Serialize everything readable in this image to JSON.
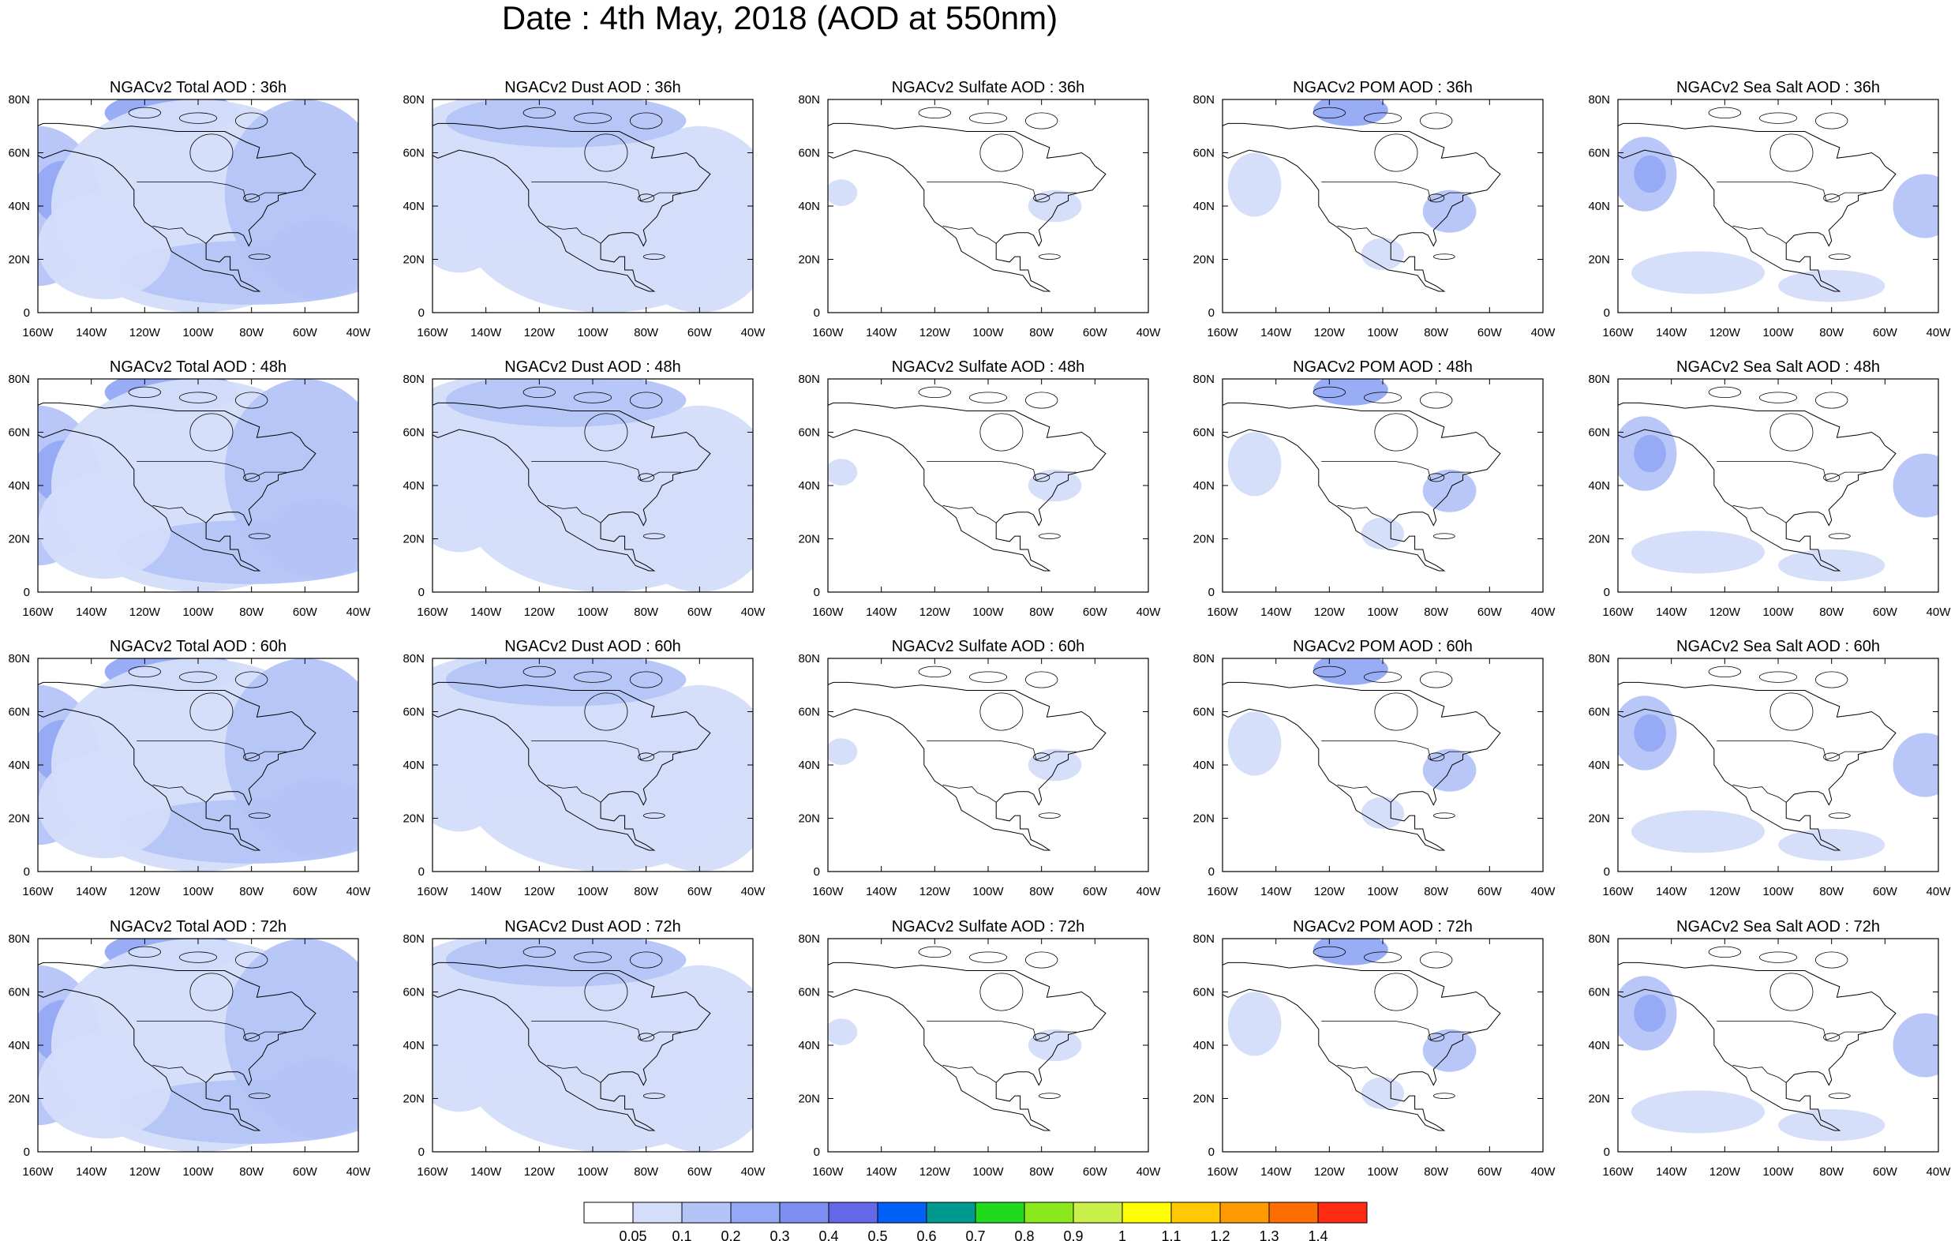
{
  "title": "Date : 4th May, 2018 (AOD at 550nm)",
  "panels": [
    [
      "NGACv2 Total AOD : 36h",
      "NGACv2 Dust AOD : 36h",
      "NGACv2 Sulfate AOD : 36h",
      "NGACv2 POM AOD : 36h",
      "NGACv2 Sea Salt AOD : 36h"
    ],
    [
      "NGACv2 Total AOD : 48h",
      "NGACv2 Dust AOD : 48h",
      "NGACv2 Sulfate AOD : 48h",
      "NGACv2 POM AOD : 48h",
      "NGACv2 Sea Salt AOD : 48h"
    ],
    [
      "NGACv2 Total AOD : 60h",
      "NGACv2 Dust AOD : 60h",
      "NGACv2 Sulfate AOD : 60h",
      "NGACv2 POM AOD : 60h",
      "NGACv2 Sea Salt AOD : 60h"
    ],
    [
      "NGACv2 Total AOD : 72h",
      "NGACv2 Dust AOD : 72h",
      "NGACv2 Sulfate AOD : 72h",
      "NGACv2 POM AOD : 72h",
      "NGACv2 Sea Salt  AOD : 72h"
    ]
  ],
  "map_axes": {
    "lon_ticks": [
      "160W",
      "140W",
      "120W",
      "100W",
      "80W",
      "60W",
      "40W"
    ],
    "lat_ticks": [
      "0",
      "20N",
      "40N",
      "60N",
      "80N"
    ],
    "lon_range": [
      -160,
      -40
    ],
    "lat_range": [
      0,
      80
    ]
  },
  "colorbar": {
    "labels": [
      "0.05",
      "0.1",
      "0.2",
      "0.3",
      "0.4",
      "0.5",
      "0.6",
      "0.7",
      "0.8",
      "0.9",
      "1",
      "1.1",
      "1.2",
      "1.3",
      "1.4"
    ],
    "colors": [
      "#ffffff",
      "#d4ddfa",
      "#b4c4f7",
      "#93a9f5",
      "#7d8ff0",
      "#6468e8",
      "#0060f8",
      "#00998f",
      "#22d91e",
      "#8be81a",
      "#c8ef4a",
      "#ffff00",
      "#ffc800",
      "#ff9a00",
      "#ff6e00",
      "#ff2a12"
    ]
  }
}
